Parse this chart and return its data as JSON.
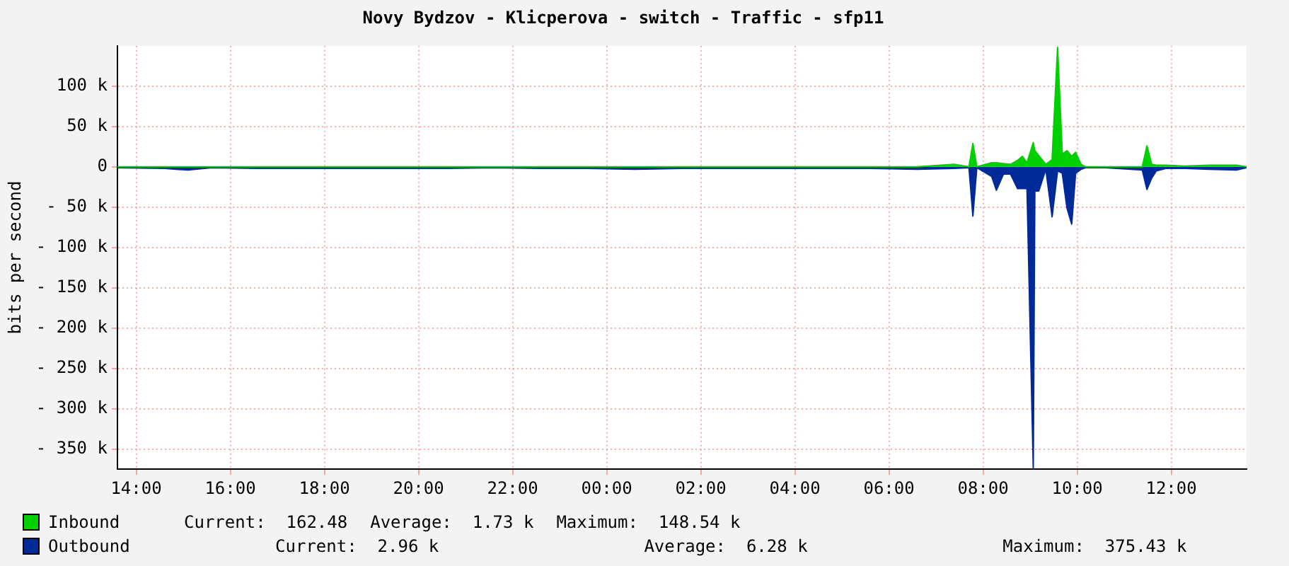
{
  "chart_data": {
    "type": "area",
    "title": "Novy Bydzov - Klicperova - switch - Traffic - sfp11",
    "ylabel": "bits per second",
    "x": [
      "2000-01-01T13:36",
      "2000-01-01T14:36",
      "2000-01-01T15:06",
      "2000-01-01T15:36",
      "2000-01-01T16:36",
      "2000-01-01T17:36",
      "2000-01-01T18:36",
      "2000-01-01T19:36",
      "2000-01-01T20:36",
      "2000-01-01T21:36",
      "2000-01-01T22:36",
      "2000-01-01T23:36",
      "2000-01-02T00:36",
      "2000-01-02T01:36",
      "2000-01-02T02:36",
      "2000-01-02T03:36",
      "2000-01-02T04:36",
      "2000-01-02T05:36",
      "2000-01-02T06:36",
      "2000-01-02T07:23",
      "2000-01-02T07:42",
      "2000-01-02T07:47",
      "2000-01-02T07:52",
      "2000-01-02T08:11",
      "2000-01-02T08:17",
      "2000-01-02T08:26",
      "2000-01-02T08:35",
      "2000-01-02T08:44",
      "2000-01-02T08:50",
      "2000-01-02T08:56",
      "2000-01-02T09:04",
      "2000-01-02T09:06",
      "2000-01-02T09:11",
      "2000-01-02T09:20",
      "2000-01-02T09:28",
      "2000-01-02T09:35",
      "2000-01-02T09:41",
      "2000-01-02T09:47",
      "2000-01-02T09:53",
      "2000-01-02T09:58",
      "2000-01-02T10:05",
      "2000-01-02T10:11",
      "2000-01-02T10:36",
      "2000-01-02T11:23",
      "2000-01-02T11:29",
      "2000-01-02T11:35",
      "2000-01-02T11:41",
      "2000-01-02T11:53",
      "2000-01-02T12:18",
      "2000-01-02T12:48",
      "2000-01-02T13:23",
      "2000-01-02T13:36"
    ],
    "series": [
      {
        "name": "Inbound",
        "color": "#00cf00",
        "values": [
          0,
          0,
          0,
          0,
          0,
          0,
          0,
          0,
          0,
          0,
          0,
          0,
          0,
          0,
          0,
          0,
          0,
          0,
          0,
          3,
          0,
          29,
          0,
          5,
          5,
          4,
          3,
          8,
          13,
          5,
          30,
          20,
          14,
          3,
          9,
          148,
          16,
          20,
          13,
          18,
          3,
          0,
          0,
          0,
          26,
          3,
          2,
          2,
          1,
          2,
          2,
          0
        ]
      },
      {
        "name": "Outbound",
        "color": "#002a97",
        "values": [
          -1,
          -2,
          -4,
          -1,
          -2,
          -2,
          -2,
          -2,
          -2,
          -1,
          -2,
          -2,
          -3,
          -2,
          -2,
          -2,
          -2,
          -2,
          -3,
          -2,
          -1,
          -61,
          -1,
          -12,
          -29,
          -9,
          -9,
          -27,
          -27,
          -27,
          -373,
          -30,
          -30,
          -3,
          -62,
          -5,
          -8,
          -51,
          -71,
          -8,
          -3,
          -1,
          -1,
          -4,
          -28,
          -14,
          -5,
          -2,
          -2,
          -3,
          -4,
          -1
        ]
      }
    ],
    "xlim": [
      "2000-01-01T13:36",
      "2000-01-02T13:36"
    ],
    "xticks": [
      {
        "value": "2000-01-01T14:00",
        "label": "14:00"
      },
      {
        "value": "2000-01-01T16:00",
        "label": "16:00"
      },
      {
        "value": "2000-01-01T18:00",
        "label": "18:00"
      },
      {
        "value": "2000-01-01T20:00",
        "label": "20:00"
      },
      {
        "value": "2000-01-01T22:00",
        "label": "22:00"
      },
      {
        "value": "2000-01-02T00:00",
        "label": "00:00"
      },
      {
        "value": "2000-01-02T02:00",
        "label": "02:00"
      },
      {
        "value": "2000-01-02T04:00",
        "label": "04:00"
      },
      {
        "value": "2000-01-02T06:00",
        "label": "06:00"
      },
      {
        "value": "2000-01-02T08:00",
        "label": "08:00"
      },
      {
        "value": "2000-01-02T10:00",
        "label": "10:00"
      },
      {
        "value": "2000-01-02T12:00",
        "label": "12:00"
      }
    ],
    "ylim": [
      -375,
      150
    ],
    "yticks": [
      {
        "value": -350,
        "label": "- 350 k"
      },
      {
        "value": -300,
        "label": "- 300 k"
      },
      {
        "value": -250,
        "label": "- 250 k"
      },
      {
        "value": -200,
        "label": "- 200 k"
      },
      {
        "value": -150,
        "label": "- 150 k"
      },
      {
        "value": -100,
        "label": "- 100 k"
      },
      {
        "value": -50,
        "label": "- 50 k"
      },
      0,
      {
        "value": 50,
        "label": "50 k"
      },
      {
        "value": 100,
        "label": "100 k"
      }
    ],
    "grid": true,
    "legend": "bottom",
    "annotations": [
      "Current:  162.48",
      "Average:  1.73 k",
      "Maximum:  148.54 k",
      "Current:  2.96 k",
      "Average:  6.28 k",
      "Maximum:  375.43 k"
    ]
  }
}
